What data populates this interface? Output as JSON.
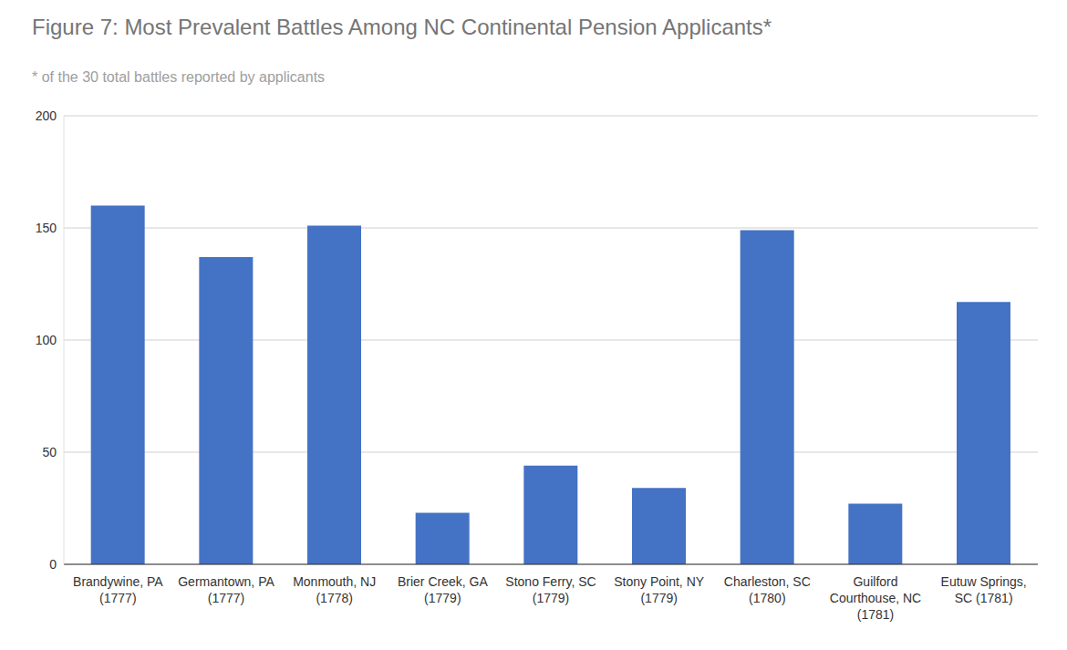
{
  "chart_data": {
    "type": "bar",
    "title": "Figure 7: Most Prevalent Battles Among NC Continental Pension Applicants*",
    "subtitle": "* of the 30 total battles reported by applicants",
    "categories": [
      "Brandywine, PA (1777)",
      "Germantown, PA (1777)",
      "Monmouth, NJ (1778)",
      "Brier Creek, GA (1779)",
      "Stono Ferry, SC (1779)",
      "Stony Point, NY (1779)",
      "Charleston, SC (1780)",
      "Guilford Courthouse, NC (1781)",
      "Eutuw Springs, SC (1781)"
    ],
    "values": [
      160,
      137,
      151,
      23,
      44,
      34,
      149,
      27,
      117
    ],
    "color": "#4472c4",
    "ylim": [
      0,
      200
    ],
    "yticks": [
      0,
      50,
      100,
      150,
      200
    ],
    "grid": true
  }
}
